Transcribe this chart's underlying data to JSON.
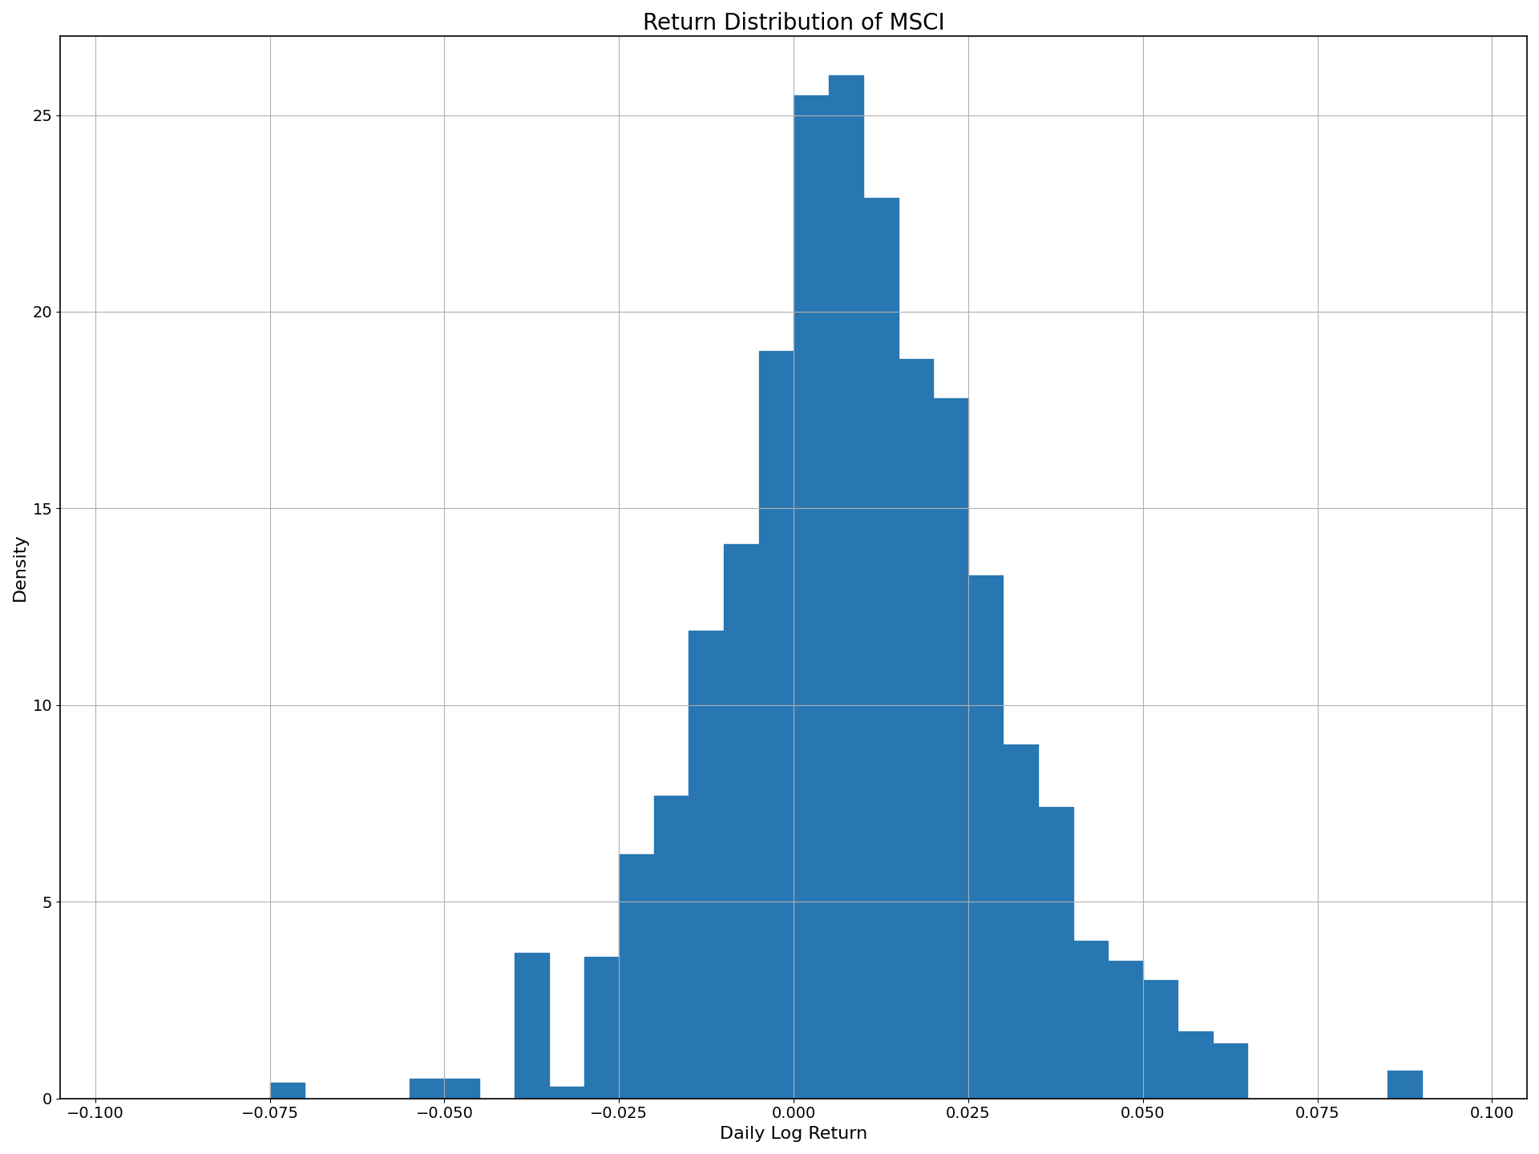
{
  "title": "Return Distribution of MSCI",
  "xlabel": "Daily Log Return",
  "ylabel": "Density",
  "bar_color": "#2876b2",
  "xlim": [
    -0.105,
    0.105
  ],
  "ylim": [
    0,
    27
  ],
  "bin_width": 0.005,
  "bin_centers": [
    -0.0975,
    -0.0925,
    -0.0875,
    -0.0825,
    -0.0775,
    -0.0725,
    -0.0675,
    -0.0625,
    -0.0575,
    -0.0525,
    -0.0475,
    -0.0425,
    -0.0375,
    -0.0325,
    -0.0275,
    -0.0225,
    -0.0175,
    -0.0125,
    -0.0075,
    -0.0025,
    0.0025,
    0.0075,
    0.0125,
    0.0175,
    0.0225,
    0.0275,
    0.0325,
    0.0375,
    0.0425,
    0.0475,
    0.0525,
    0.0575,
    0.0625,
    0.0675,
    0.0725,
    0.0775,
    0.0825,
    0.0875,
    0.0925,
    0.0975
  ],
  "bar_heights": [
    0.0,
    0.0,
    0.0,
    0.0,
    0.0,
    0.4,
    0.0,
    0.0,
    0.0,
    0.5,
    0.5,
    0.0,
    3.7,
    0.3,
    3.6,
    6.2,
    7.7,
    11.9,
    14.1,
    19.0,
    25.5,
    26.0,
    22.9,
    18.8,
    17.8,
    13.3,
    9.0,
    7.4,
    4.0,
    3.5,
    3.0,
    1.7,
    1.4,
    0.0,
    0.0,
    0.0,
    0.0,
    0.7,
    0.0,
    0.0
  ],
  "xticks": [
    -0.1,
    -0.075,
    -0.05,
    -0.025,
    0.0,
    0.025,
    0.05,
    0.075,
    0.1
  ],
  "xtick_labels": [
    "−0.100",
    "−0.075",
    "−0.050",
    "−0.025",
    "0.000",
    "0.025",
    "0.050",
    "0.075",
    "0.100"
  ],
  "yticks": [
    0,
    5,
    10,
    15,
    20,
    25
  ],
  "grid_color": "#b0b0b0",
  "background_color": "#ffffff",
  "title_fontsize": 20,
  "label_fontsize": 16,
  "tick_fontsize": 14
}
